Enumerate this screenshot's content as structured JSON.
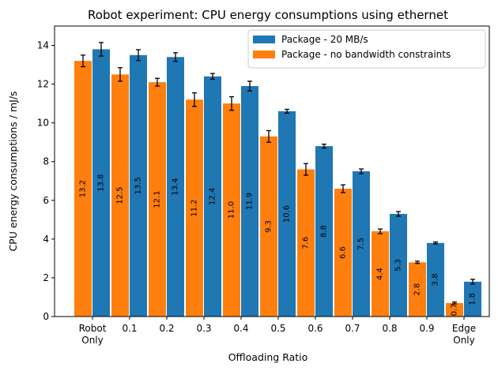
{
  "chart_data": {
    "type": "bar",
    "title": "Robot experiment: CPU energy consumptions using ethernet",
    "xlabel": "Offloading Ratio",
    "ylabel": "CPU energy consumptions / mJ/s",
    "ylim": [
      0,
      15
    ],
    "yticks": [
      0,
      2,
      4,
      6,
      8,
      10,
      12,
      14
    ],
    "categories": [
      [
        "Robot",
        "Only"
      ],
      [
        "0.1"
      ],
      [
        "0.2"
      ],
      [
        "0.3"
      ],
      [
        "0.4"
      ],
      [
        "0.5"
      ],
      [
        "0.6"
      ],
      [
        "0.7"
      ],
      [
        "0.8"
      ],
      [
        "0.9"
      ],
      [
        "Edge",
        "Only"
      ]
    ],
    "legend_position": "top-right",
    "series": [
      {
        "name": "Package - 20 MB/s",
        "color": "#1f77b4",
        "values": [
          13.8,
          13.5,
          13.4,
          12.4,
          11.9,
          10.6,
          8.8,
          7.5,
          5.3,
          3.8,
          1.8
        ],
        "errors": [
          0.35,
          0.28,
          0.22,
          0.15,
          0.25,
          0.1,
          0.1,
          0.12,
          0.12,
          0.05,
          0.12
        ],
        "labels": [
          "13.8",
          "13.5",
          "13.4",
          "12.4",
          "11.9",
          "10.6",
          "8.8",
          "7.5",
          "5.3",
          "3.8",
          "1.8"
        ]
      },
      {
        "name": "Package - no bandwidth constraints",
        "color": "#ff7f0e",
        "values": [
          13.2,
          12.5,
          12.1,
          11.2,
          11.0,
          9.3,
          7.6,
          6.6,
          4.4,
          2.8,
          0.7
        ],
        "errors": [
          0.3,
          0.35,
          0.2,
          0.35,
          0.35,
          0.3,
          0.3,
          0.2,
          0.12,
          0.06,
          0.05
        ],
        "labels": [
          "13.2",
          "12.5",
          "12.1",
          "11.2",
          "11.0",
          "9.3",
          "7.6",
          "6.6",
          "4.4",
          "2.8",
          "0.7"
        ]
      }
    ]
  }
}
